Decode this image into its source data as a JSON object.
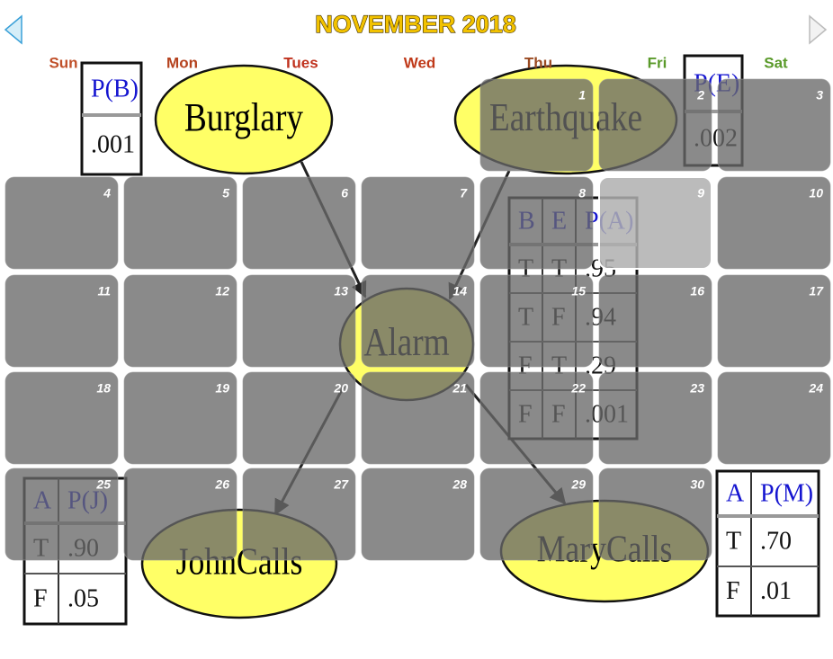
{
  "calendar": {
    "title": "NOVEMBER 2018",
    "weekdays": [
      "Sun",
      "Mon",
      "Tues",
      "Wed",
      "Thu",
      "Fri",
      "Sat"
    ],
    "days": [
      1,
      2,
      3,
      4,
      5,
      6,
      7,
      8,
      9,
      10,
      11,
      12,
      13,
      14,
      15,
      16,
      17,
      18,
      19,
      20,
      21,
      22,
      23,
      24,
      25,
      26,
      27,
      28,
      29,
      30
    ]
  },
  "network": {
    "nodes": [
      {
        "label": "Burglary"
      },
      {
        "label": "Earthquake"
      },
      {
        "label": "Alarm"
      },
      {
        "label": "JohnCalls"
      },
      {
        "label": "MaryCalls"
      }
    ],
    "tables": [
      {
        "header": [
          "P(B)"
        ],
        "rows": [
          [
            ".001"
          ]
        ]
      },
      {
        "header": [
          "P(E)"
        ],
        "rows": [
          [
            ".002"
          ]
        ]
      },
      {
        "header": [
          "B",
          "E",
          "P(A)"
        ],
        "rows": [
          [
            "T",
            "T",
            ".95"
          ],
          [
            "T",
            "F",
            ".94"
          ],
          [
            "F",
            "T",
            ".29"
          ],
          [
            "F",
            "F",
            ".001"
          ]
        ]
      },
      {
        "header": [
          "A",
          "P(J)"
        ],
        "rows": [
          [
            "T",
            ".90"
          ],
          [
            "F",
            ".05"
          ]
        ]
      },
      {
        "header": [
          "A",
          "P(M)"
        ],
        "rows": [
          [
            "T",
            ".70"
          ],
          [
            "F",
            ".01"
          ]
        ]
      }
    ]
  }
}
